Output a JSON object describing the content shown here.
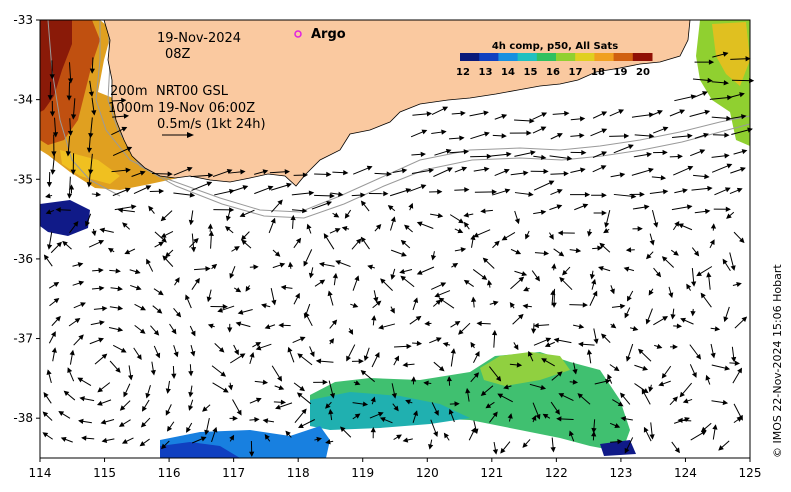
{
  "map": {
    "longitude_ticks": [
      "114",
      "115",
      "116",
      "117",
      "118",
      "119",
      "120",
      "121",
      "122",
      "123",
      "124",
      "125"
    ],
    "latitude_ticks": [
      "-33",
      "-34",
      "-35",
      "-36",
      "-37",
      "-38"
    ],
    "longitude_range": [
      114,
      125
    ],
    "latitude_range": [
      -38.5,
      -33
    ],
    "land_color": "#fac9a0"
  },
  "annotations": {
    "date": "19-Nov-2024",
    "hour": "08Z",
    "contour_200m": "200m",
    "contour_1000m": "1000m",
    "currents_source": "NRT00 GSL",
    "currents_time": "19-Nov 06:00Z",
    "scale_label": "0.5m/s (1kt 24h)",
    "argo_label": "Argo",
    "argo_marker_color": "#e020e0"
  },
  "colorbar": {
    "title": "4h comp, p50, All Sats",
    "ticks": [
      "12",
      "13",
      "14",
      "15",
      "16",
      "17",
      "18",
      "19",
      "20"
    ],
    "colors": [
      "#0a1a7a",
      "#1040c0",
      "#1890e0",
      "#20c0c0",
      "#30c060",
      "#90d030",
      "#e0d020",
      "#f0a020",
      "#d06010",
      "#901005"
    ]
  },
  "credit": "© IMOS 22-Nov-2024 15:06 Hobart"
}
